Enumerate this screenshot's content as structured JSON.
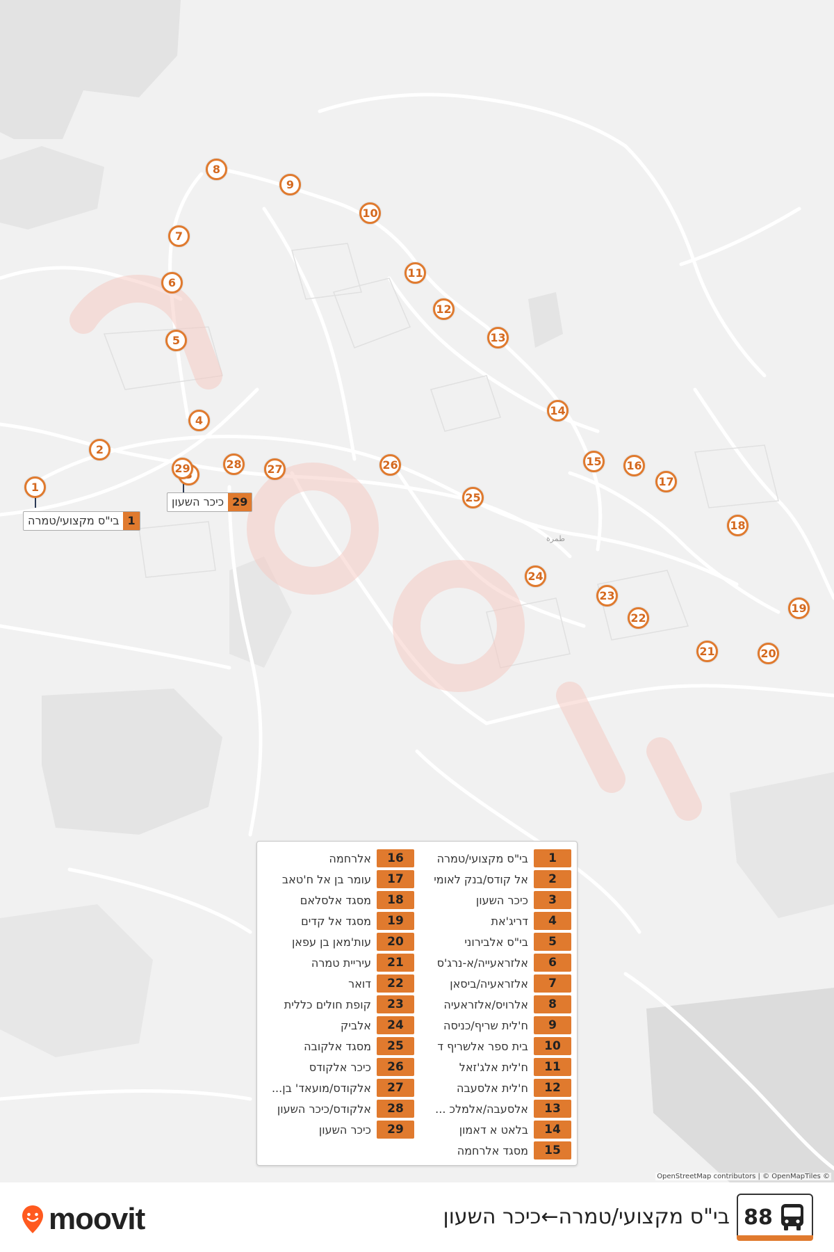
{
  "route": {
    "number": "88",
    "title": "בי\"ס מקצועי/טמרה←כיכר השעון",
    "bus_icon": "bus-icon"
  },
  "brand": {
    "name": "moovit",
    "accent": "#e07a2e",
    "pin_color": "#ff5a1f"
  },
  "map": {
    "attribution": "OpenStreetMap contributors | © OpenMapTiles ©",
    "town_label": "طمرة",
    "callouts": [
      {
        "num": "1",
        "name": "בי\"ס מקצועי/טמרה"
      },
      {
        "num": "29",
        "name": "כיכר השעון"
      }
    ],
    "markers": [
      "1",
      "2",
      "3",
      "4",
      "5",
      "6",
      "7",
      "8",
      "9",
      "10",
      "11",
      "12",
      "13",
      "14",
      "15",
      "16",
      "17",
      "18",
      "19",
      "20",
      "21",
      "22",
      "23",
      "24",
      "25",
      "26",
      "27",
      "28",
      "29"
    ]
  },
  "legend": {
    "stops": [
      {
        "num": "1",
        "name": "בי\"ס מקצועי/טמרה"
      },
      {
        "num": "2",
        "name": "אל קודס/בנק לאומי"
      },
      {
        "num": "3",
        "name": "כיכר השעון"
      },
      {
        "num": "4",
        "name": "דריג'את"
      },
      {
        "num": "5",
        "name": "בי\"ס אלבירוני"
      },
      {
        "num": "6",
        "name": "אלזראעייה/א-נרג'ס"
      },
      {
        "num": "7",
        "name": "אלזראעיה/ביסאן"
      },
      {
        "num": "8",
        "name": "אלרויס/אלזראעיה"
      },
      {
        "num": "9",
        "name": "ח'לית שריף/כניסה"
      },
      {
        "num": "10",
        "name": "בית ספר אלשריף ד"
      },
      {
        "num": "11",
        "name": "ח'לית אלג'זאל"
      },
      {
        "num": "12",
        "name": "ח'לית אלסעבה"
      },
      {
        "num": "13",
        "name": "אלסעבה/אלמלכ ..."
      },
      {
        "num": "14",
        "name": "בלאט א דאמון"
      },
      {
        "num": "15",
        "name": "מסגד אלרחמה"
      },
      {
        "num": "16",
        "name": "אלרחמה"
      },
      {
        "num": "17",
        "name": "עומר בן אל ח'טאב"
      },
      {
        "num": "18",
        "name": "מסגד אלסלאם"
      },
      {
        "num": "19",
        "name": "מסגד אל קדים"
      },
      {
        "num": "20",
        "name": "עות'מאן בן עפאן"
      },
      {
        "num": "21",
        "name": "עיריית טמרה"
      },
      {
        "num": "22",
        "name": "דואר"
      },
      {
        "num": "23",
        "name": "קופת חולים כללית"
      },
      {
        "num": "24",
        "name": "אלביק"
      },
      {
        "num": "25",
        "name": "מסגד אלקובה"
      },
      {
        "num": "26",
        "name": "כיכר אלקודס"
      },
      {
        "num": "27",
        "name": "אלקודס/מועאד' בן..."
      },
      {
        "num": "28",
        "name": "אלקודס/כיכר השעון"
      },
      {
        "num": "29",
        "name": "כיכר השעון"
      }
    ]
  }
}
